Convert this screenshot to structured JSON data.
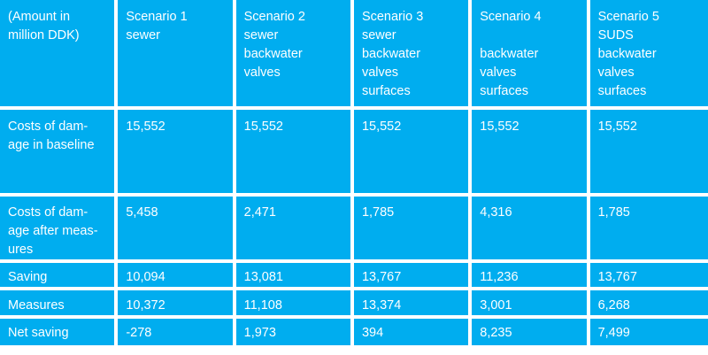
{
  "table": {
    "header": [
      "(Amount in\nmillion DDK)",
      "Scenario 1\nsewer",
      "Scenario 2\nsewer\nbackwater\nvalves",
      "Scenario 3\nsewer\nbackwater\nvalves\nsurfaces",
      "Scenario 4\n\nbackwater\nvalves\nsurfaces",
      "Scenario 5\nSUDS\nbackwater\nvalves\nsurfaces"
    ],
    "rows": [
      {
        "label": "Costs of dam-\nage in baseline",
        "values": [
          "15,552",
          "15,552",
          "15,552",
          "15,552",
          "15,552"
        ]
      },
      {
        "label": "Costs of dam-\nage after meas-\nures",
        "values": [
          "5,458",
          "2,471",
          "1,785",
          "4,316",
          "1,785"
        ]
      },
      {
        "label": "Saving",
        "values": [
          "10,094",
          "13,081",
          "13,767",
          "11,236",
          "13,767"
        ]
      },
      {
        "label": "Measures",
        "values": [
          "10,372",
          "11,108",
          "13,374",
          "3,001",
          "6,268"
        ]
      },
      {
        "label": "Net saving",
        "values": [
          "-278",
          "1,973",
          "394",
          "8,235",
          "7,499"
        ]
      }
    ]
  },
  "colors": {
    "cell_background": "#00adef",
    "text": "#ffffff",
    "gap": "#ffffff"
  }
}
